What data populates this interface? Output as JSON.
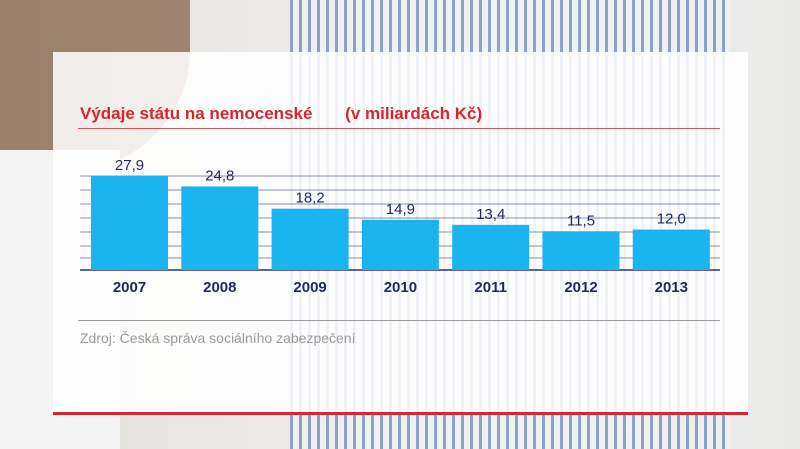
{
  "chart_data": {
    "type": "bar",
    "title": "Výdaje státu na nemocenské",
    "unit_label": "(v miliardách Kč)",
    "categories": [
      "2007",
      "2008",
      "2009",
      "2010",
      "2011",
      "2012",
      "2013"
    ],
    "values": [
      27.9,
      24.8,
      18.2,
      14.9,
      13.4,
      11.5,
      12.0
    ],
    "value_labels": [
      "27,9",
      "24,8",
      "18,2",
      "14,9",
      "13,4",
      "11,5",
      "12,0"
    ],
    "ylim": [
      0,
      28
    ],
    "grid": true,
    "bar_color": "#1ab4f0"
  },
  "source": "Zdroj: Česká správa sociálního zabezpečení",
  "colors": {
    "title": "#d7262e",
    "accent_line": "#d7262e",
    "text_dark": "#1d2a5c"
  }
}
